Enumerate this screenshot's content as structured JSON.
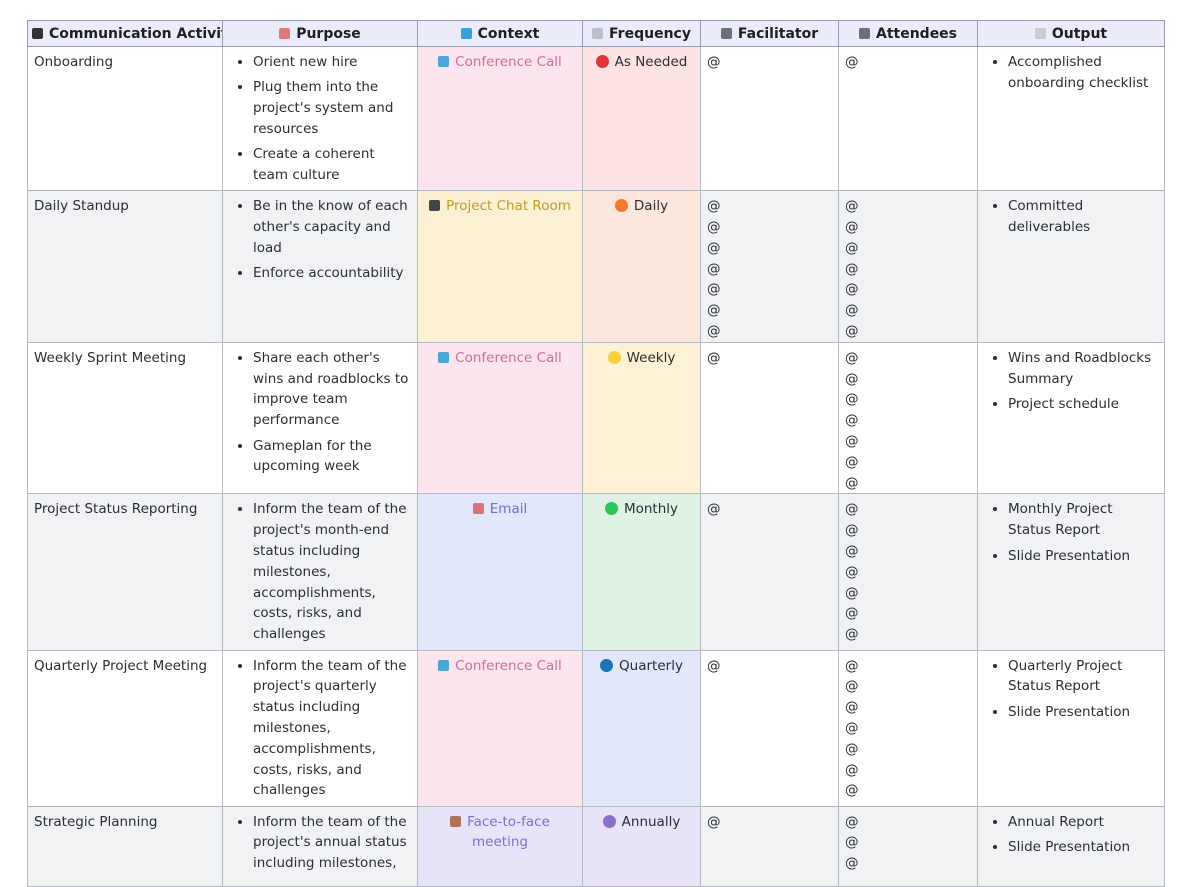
{
  "table": {
    "columns": [
      "Communication Activity",
      "Purpose",
      "Context",
      "Frequency",
      "Facilitator",
      "Attendees",
      "Output"
    ],
    "rows": [
      {
        "activity": "Onboarding",
        "purpose": [
          "Orient new hire",
          "Plug them into the project's system and resources",
          "Create a coherent team culture"
        ],
        "context": "Conference Call",
        "frequency": "As Needed",
        "facilitator": [
          "@"
        ],
        "attendees": [
          "@"
        ],
        "output": [
          "Accomplished onboarding checklist"
        ]
      },
      {
        "activity": "Daily Standup",
        "purpose": [
          "Be in the know of each other's capacity and load",
          "Enforce accountability"
        ],
        "context": "Project Chat Room",
        "frequency": "Daily",
        "facilitator": [
          "@",
          "@",
          "@",
          "@",
          "@",
          "@",
          "@"
        ],
        "attendees": [
          "@",
          "@",
          "@",
          "@",
          "@",
          "@",
          "@"
        ],
        "output": [
          "Committed deliverables"
        ]
      },
      {
        "activity": "Weekly Sprint Meeting",
        "purpose": [
          "Share each other's wins and roadblocks to improve team performance",
          "Gameplan for the upcoming week"
        ],
        "context": "Conference Call",
        "frequency": "Weekly",
        "facilitator": [
          "@"
        ],
        "attendees": [
          "@",
          "@",
          "@",
          "@",
          "@",
          "@",
          "@"
        ],
        "output": [
          "Wins and Roadblocks Summary",
          "Project schedule"
        ]
      },
      {
        "activity": "Project Status Reporting",
        "purpose": [
          "Inform the team of the project's month-end status including milestones, accomplishments, costs, risks, and challenges"
        ],
        "context": "Email",
        "frequency": "Monthly",
        "facilitator": [
          "@"
        ],
        "attendees": [
          "@",
          "@",
          "@",
          "@",
          "@",
          "@",
          "@"
        ],
        "output": [
          "Monthly Project Status Report",
          "Slide Presentation"
        ]
      },
      {
        "activity": "Quarterly Project Meeting",
        "purpose": [
          "Inform the team of the project's quarterly status including milestones, accomplishments, costs, risks, and challenges"
        ],
        "context": "Conference Call",
        "frequency": "Quarterly",
        "facilitator": [
          "@"
        ],
        "attendees": [
          "@",
          "@",
          "@",
          "@",
          "@",
          "@",
          "@"
        ],
        "output": [
          "Quarterly Project Status Report",
          "Slide Presentation"
        ]
      },
      {
        "activity": "Strategic Planning",
        "purpose": [
          "Inform the team of the project's annual status including milestones,"
        ],
        "context": "Face-to-face meeting",
        "frequency": "Annually",
        "facilitator": [
          "@"
        ],
        "attendees": [
          "@",
          "@",
          "@"
        ],
        "output": [
          "Annual Report",
          "Slide Presentation"
        ]
      }
    ]
  }
}
